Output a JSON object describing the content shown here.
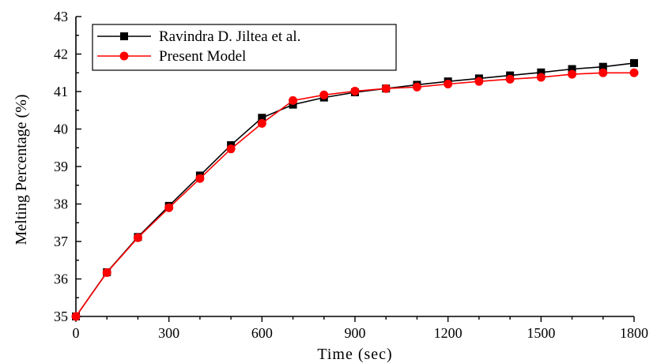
{
  "chart_data": {
    "type": "line",
    "xlabel": "Time (sec)",
    "ylabel": "Melting Percentage (%)",
    "xlim": [
      0,
      1800
    ],
    "ylim": [
      35,
      43
    ],
    "x_ticks": [
      0,
      300,
      600,
      900,
      1200,
      1500,
      1800
    ],
    "y_ticks": [
      35,
      36,
      37,
      38,
      39,
      40,
      41,
      42,
      43
    ],
    "grid": false,
    "legend_position": "top-left",
    "x": [
      0,
      100,
      200,
      300,
      400,
      500,
      600,
      700,
      800,
      900,
      1000,
      1100,
      1200,
      1300,
      1400,
      1500,
      1600,
      1700,
      1800
    ],
    "series": [
      {
        "name": "Ravindra D. Jiltea et al.",
        "color": "#000000",
        "marker": "square",
        "values": [
          35.0,
          36.18,
          37.12,
          37.95,
          38.76,
          39.57,
          40.3,
          40.65,
          40.84,
          40.98,
          41.08,
          41.18,
          41.27,
          41.35,
          41.43,
          41.51,
          41.6,
          41.66,
          41.76
        ]
      },
      {
        "name": "Present Model",
        "color": "#ff0000",
        "marker": "circle",
        "values": [
          35.0,
          36.17,
          37.1,
          37.9,
          38.68,
          39.47,
          40.15,
          40.76,
          40.91,
          41.01,
          41.08,
          41.12,
          41.2,
          41.27,
          41.33,
          41.38,
          41.46,
          41.5,
          41.5
        ]
      }
    ]
  }
}
